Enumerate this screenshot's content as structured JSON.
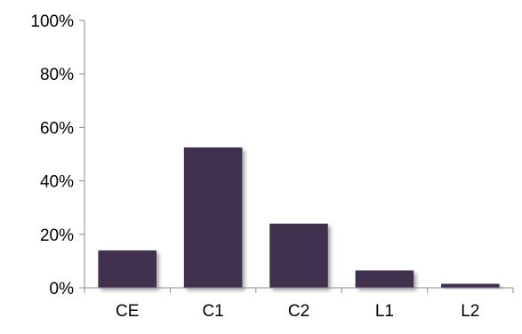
{
  "chart_data": {
    "type": "bar",
    "categories": [
      "CE",
      "C1",
      "C2",
      "L1",
      "L2"
    ],
    "values": [
      14,
      52.5,
      24,
      6.5,
      1.5
    ],
    "ylim": [
      0,
      100
    ],
    "yticks": [
      0,
      20,
      40,
      60,
      80,
      100
    ],
    "ytick_labels": [
      "0%",
      "20%",
      "40%",
      "60%",
      "80%",
      "100%"
    ],
    "grid": false,
    "legend": "none",
    "bar_color": "#3f3050"
  }
}
